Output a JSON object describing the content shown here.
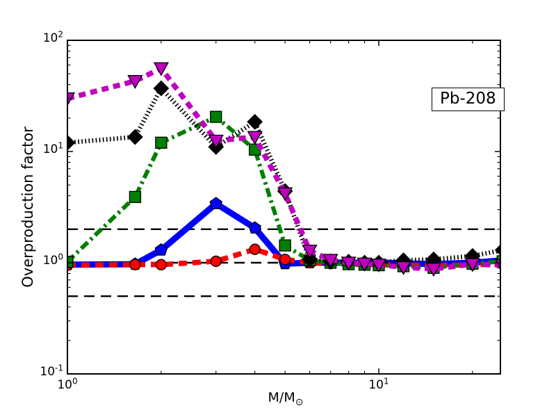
{
  "figure": {
    "background": "#ffffff"
  },
  "chart_data": {
    "type": "line",
    "title": "",
    "ylabel": "Overproduction factor",
    "xlabel_main": "M/M",
    "xlabel_sub": "⊙",
    "x_scale": "log",
    "y_scale": "log",
    "xlim": [
      1,
      24.6
    ],
    "ylim": [
      0.1,
      100
    ],
    "grid": false,
    "legend": "none",
    "tick_label_base": "10",
    "x_tick_exponents": [
      0,
      1
    ],
    "y_tick_exponents": [
      2,
      1,
      0,
      -1
    ],
    "x_minor_ticks": [
      2,
      3,
      4,
      5,
      6,
      7,
      8,
      9,
      20
    ],
    "annotation": {
      "text": "Pb-208"
    },
    "reference_hlines": {
      "values": [
        2.0,
        1.0,
        0.5
      ],
      "color": "#000000",
      "style": "dashed"
    },
    "x": [
      1,
      1.65,
      2,
      3,
      4,
      5,
      6,
      7,
      8,
      9,
      10,
      12,
      15,
      20,
      25
    ],
    "series": [
      {
        "name": "blue-solid",
        "color": "#0000ff",
        "linestyle": "solid",
        "linewidth": 9,
        "dash": "",
        "marker": "pentagon",
        "marker_size": 9,
        "values": [
          0.96,
          0.97,
          1.3,
          3.4,
          2.05,
          0.98,
          1.0,
          1.0,
          1.0,
          1.0,
          1.0,
          0.99,
          0.97,
          1.0,
          1.05
        ]
      },
      {
        "name": "red-dashed",
        "color": "#ff0000",
        "linestyle": "dashed",
        "linewidth": 7.5,
        "dash": "12 8",
        "marker": "circle",
        "marker_size": 7.5,
        "values": [
          0.95,
          0.96,
          0.96,
          1.03,
          1.32,
          1.07,
          1.0,
          0.98,
          0.97,
          0.96,
          0.96,
          0.95,
          0.94,
          0.96,
          0.97
        ]
      },
      {
        "name": "green-dashdot",
        "color": "#008000",
        "linestyle": "dashdot",
        "linewidth": 6,
        "dash": "13 5.5 3.5 5.5",
        "marker": "square",
        "marker_size": 8,
        "values": [
          1.02,
          3.9,
          12,
          20.5,
          10.4,
          1.43,
          1.05,
          1.0,
          0.97,
          0.96,
          0.95,
          0.93,
          0.9,
          0.98,
          1.03
        ]
      },
      {
        "name": "black-dotted",
        "color": "#000000",
        "linestyle": "dotted",
        "linewidth": 6.5,
        "dash": "1.7 3.4",
        "marker": "diamond",
        "marker_size": 10.5,
        "values": [
          12,
          13.5,
          37,
          11,
          18.5,
          4.4,
          1.07,
          1.03,
          1.02,
          1.0,
          1.0,
          1.05,
          1.07,
          1.15,
          1.3
        ]
      },
      {
        "name": "magenta-dashed",
        "color": "#bf00bf",
        "linestyle": "dashed",
        "linewidth": 7.5,
        "dash": "10 7",
        "marker": "triangle-down",
        "marker_size": 10,
        "values": [
          30,
          43,
          56,
          12.5,
          13.5,
          4.2,
          1.28,
          1.06,
          1.0,
          0.98,
          0.96,
          0.91,
          0.88,
          0.97,
          0.95
        ]
      }
    ]
  }
}
